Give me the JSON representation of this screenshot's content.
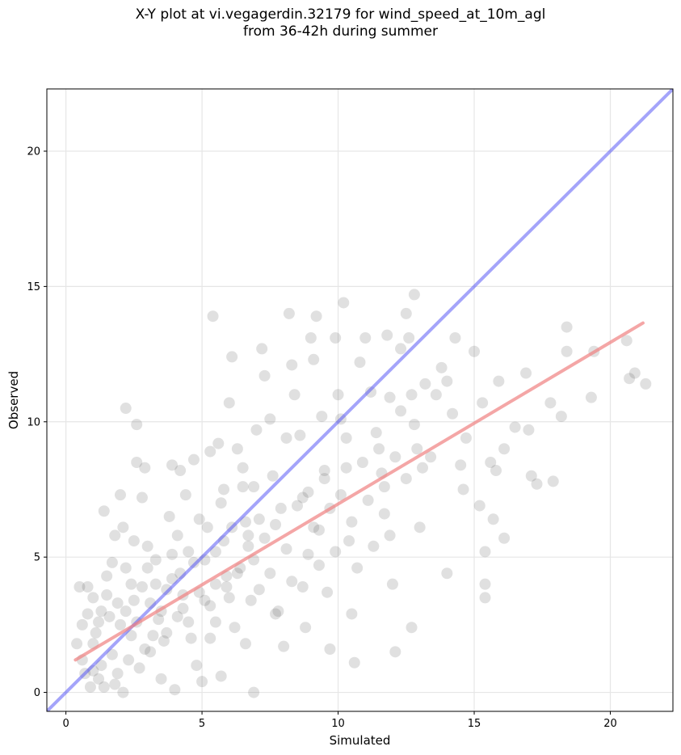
{
  "chart_data": {
    "type": "scatter",
    "title_lines": [
      "X-Y plot at vi.vegagerdin.32179 for wind_speed_at_10m_agl",
      "from 36-42h during summer"
    ],
    "xlabel": "Simulated",
    "ylabel": "Observed",
    "xlim": [
      -0.7,
      22.3
    ],
    "ylim": [
      -0.7,
      22.3
    ],
    "xticks": [
      0,
      5,
      10,
      15,
      20
    ],
    "yticks": [
      0,
      5,
      10,
      15,
      20
    ],
    "grid": true,
    "point_color": "#555555",
    "point_opacity": 0.18,
    "identity_line": {
      "color": "#4a4af5",
      "from": [
        -0.7,
        -0.7
      ],
      "to": [
        22.3,
        22.3
      ]
    },
    "regression_line": {
      "color": "#f08080",
      "from": [
        0.35,
        1.2
      ],
      "to": [
        21.2,
        13.65
      ]
    },
    "points": [
      [
        0.5,
        3.9
      ],
      [
        0.8,
        3.9
      ],
      [
        1.0,
        3.5
      ],
      [
        0.6,
        2.5
      ],
      [
        0.7,
        0.7
      ],
      [
        0.9,
        0.2
      ],
      [
        1.2,
        0.5
      ],
      [
        1.0,
        1.8
      ],
      [
        1.3,
        3.0
      ],
      [
        1.5,
        4.3
      ],
      [
        1.4,
        6.7
      ],
      [
        1.8,
        5.8
      ],
      [
        2.0,
        7.3
      ],
      [
        2.1,
        6.1
      ],
      [
        2.2,
        10.5
      ],
      [
        2.6,
        9.9
      ],
      [
        2.6,
        8.5
      ],
      [
        2.9,
        8.3
      ],
      [
        2.8,
        7.2
      ],
      [
        2.5,
        5.6
      ],
      [
        1.8,
        0.3
      ],
      [
        2.1,
        0.0
      ],
      [
        2.3,
        1.2
      ],
      [
        2.0,
        2.5
      ],
      [
        2.5,
        3.4
      ],
      [
        1.7,
        4.8
      ],
      [
        3.0,
        4.6
      ],
      [
        3.2,
        2.1
      ],
      [
        3.5,
        0.5
      ],
      [
        3.1,
        1.5
      ],
      [
        3.7,
        3.8
      ],
      [
        4.0,
        0.1
      ],
      [
        3.8,
        6.5
      ],
      [
        3.9,
        8.4
      ],
      [
        4.2,
        8.2
      ],
      [
        4.4,
        7.3
      ],
      [
        4.7,
        8.6
      ],
      [
        4.5,
        5.2
      ],
      [
        4.1,
        2.8
      ],
      [
        4.8,
        1.0
      ],
      [
        5.0,
        0.4
      ],
      [
        5.2,
        6.1
      ],
      [
        5.3,
        8.9
      ],
      [
        5.4,
        13.9
      ],
      [
        5.6,
        9.2
      ],
      [
        5.8,
        7.5
      ],
      [
        5.9,
        4.3
      ],
      [
        5.5,
        2.6
      ],
      [
        5.7,
        0.6
      ],
      [
        6.0,
        10.7
      ],
      [
        6.1,
        12.4
      ],
      [
        6.3,
        9.0
      ],
      [
        6.5,
        7.6
      ],
      [
        6.7,
        5.4
      ],
      [
        6.9,
        0.0
      ],
      [
        6.6,
        1.8
      ],
      [
        6.8,
        3.4
      ],
      [
        7.0,
        9.7
      ],
      [
        7.2,
        12.7
      ],
      [
        7.3,
        11.7
      ],
      [
        7.5,
        10.1
      ],
      [
        7.6,
        8.0
      ],
      [
        7.7,
        6.2
      ],
      [
        7.8,
        3.0
      ],
      [
        8.0,
        1.7
      ],
      [
        8.1,
        9.4
      ],
      [
        8.2,
        14.0
      ],
      [
        8.3,
        12.1
      ],
      [
        8.4,
        11.0
      ],
      [
        8.6,
        9.5
      ],
      [
        8.7,
        7.2
      ],
      [
        8.9,
        5.1
      ],
      [
        8.8,
        2.4
      ],
      [
        9.0,
        13.1
      ],
      [
        9.1,
        12.3
      ],
      [
        9.2,
        13.9
      ],
      [
        9.4,
        10.2
      ],
      [
        9.5,
        8.2
      ],
      [
        9.3,
        6.0
      ],
      [
        9.6,
        3.7
      ],
      [
        9.7,
        1.6
      ],
      [
        9.9,
        13.1
      ],
      [
        10.0,
        11.0
      ],
      [
        10.1,
        10.1
      ],
      [
        10.2,
        14.4
      ],
      [
        10.3,
        8.3
      ],
      [
        10.4,
        5.6
      ],
      [
        10.5,
        2.9
      ],
      [
        10.6,
        1.1
      ],
      [
        10.8,
        12.2
      ],
      [
        11.0,
        13.1
      ],
      [
        11.2,
        11.1
      ],
      [
        11.4,
        9.6
      ],
      [
        11.6,
        8.1
      ],
      [
        11.7,
        6.6
      ],
      [
        11.8,
        13.2
      ],
      [
        11.9,
        10.9
      ],
      [
        12.0,
        4.0
      ],
      [
        12.1,
        1.5
      ],
      [
        12.3,
        12.7
      ],
      [
        12.5,
        14.0
      ],
      [
        12.6,
        13.1
      ],
      [
        12.7,
        11.0
      ],
      [
        12.8,
        14.7
      ],
      [
        12.9,
        9.0
      ],
      [
        13.0,
        6.1
      ],
      [
        12.7,
        2.4
      ],
      [
        13.2,
        11.4
      ],
      [
        13.4,
        8.7
      ],
      [
        13.6,
        11.0
      ],
      [
        13.8,
        12.0
      ],
      [
        14.0,
        11.5
      ],
      [
        14.2,
        10.3
      ],
      [
        14.0,
        4.4
      ],
      [
        14.3,
        13.1
      ],
      [
        14.5,
        8.4
      ],
      [
        14.6,
        7.5
      ],
      [
        14.7,
        9.4
      ],
      [
        15.0,
        12.6
      ],
      [
        15.2,
        6.9
      ],
      [
        15.3,
        10.7
      ],
      [
        15.4,
        4.0
      ],
      [
        15.4,
        3.5
      ],
      [
        15.4,
        5.2
      ],
      [
        15.6,
        8.5
      ],
      [
        15.7,
        6.4
      ],
      [
        15.9,
        11.5
      ],
      [
        15.8,
        8.2
      ],
      [
        16.1,
        5.7
      ],
      [
        16.1,
        9.0
      ],
      [
        16.5,
        9.8
      ],
      [
        16.9,
        11.8
      ],
      [
        17.0,
        9.7
      ],
      [
        17.1,
        8.0
      ],
      [
        17.3,
        7.7
      ],
      [
        17.8,
        10.7
      ],
      [
        17.9,
        7.8
      ],
      [
        18.2,
        10.2
      ],
      [
        18.4,
        13.5
      ],
      [
        18.4,
        12.6
      ],
      [
        19.3,
        10.9
      ],
      [
        19.4,
        12.6
      ],
      [
        20.6,
        13.0
      ],
      [
        20.7,
        11.6
      ],
      [
        20.9,
        11.8
      ],
      [
        21.3,
        11.4
      ],
      [
        0.4,
        1.8
      ],
      [
        0.6,
        1.2
      ],
      [
        0.8,
        2.9
      ],
      [
        1.1,
        2.2
      ],
      [
        1.3,
        1.0
      ],
      [
        1.4,
        0.2
      ],
      [
        1.6,
        2.8
      ],
      [
        1.9,
        3.3
      ],
      [
        2.2,
        4.6
      ],
      [
        2.4,
        2.1
      ],
      [
        2.7,
        0.9
      ],
      [
        2.8,
        3.9
      ],
      [
        3.0,
        5.4
      ],
      [
        3.3,
        4.0
      ],
      [
        3.4,
        2.7
      ],
      [
        3.6,
        1.9
      ],
      [
        3.9,
        5.1
      ],
      [
        4.2,
        4.4
      ],
      [
        4.3,
        3.1
      ],
      [
        4.6,
        2.0
      ],
      [
        4.9,
        3.7
      ],
      [
        5.1,
        4.9
      ],
      [
        5.3,
        3.2
      ],
      [
        5.5,
        4.0
      ],
      [
        5.8,
        5.6
      ],
      [
        6.0,
        3.5
      ],
      [
        6.2,
        2.4
      ],
      [
        6.4,
        4.6
      ],
      [
        6.6,
        6.3
      ],
      [
        6.9,
        4.9
      ],
      [
        7.1,
        3.8
      ],
      [
        7.3,
        5.7
      ],
      [
        7.5,
        4.4
      ],
      [
        7.7,
        2.9
      ],
      [
        7.9,
        6.8
      ],
      [
        8.1,
        5.3
      ],
      [
        8.3,
        4.1
      ],
      [
        8.5,
        6.9
      ],
      [
        8.7,
        3.9
      ],
      [
        8.9,
        7.4
      ],
      [
        9.1,
        6.1
      ],
      [
        9.3,
        4.7
      ],
      [
        9.5,
        7.9
      ],
      [
        9.7,
        6.8
      ],
      [
        9.9,
        5.2
      ],
      [
        10.1,
        7.3
      ],
      [
        10.3,
        9.4
      ],
      [
        10.5,
        6.3
      ],
      [
        10.7,
        4.6
      ],
      [
        10.9,
        8.5
      ],
      [
        11.1,
        7.1
      ],
      [
        11.3,
        5.4
      ],
      [
        11.5,
        9.0
      ],
      [
        11.7,
        7.6
      ],
      [
        11.9,
        5.8
      ],
      [
        12.1,
        8.7
      ],
      [
        12.3,
        10.4
      ],
      [
        12.5,
        7.9
      ],
      [
        12.8,
        9.9
      ],
      [
        13.1,
        8.3
      ],
      [
        1.0,
        0.8
      ],
      [
        1.2,
        2.6
      ],
      [
        1.5,
        3.6
      ],
      [
        1.7,
        1.4
      ],
      [
        1.9,
        0.7
      ],
      [
        2.2,
        3.0
      ],
      [
        2.4,
        4.0
      ],
      [
        2.6,
        2.6
      ],
      [
        2.9,
        1.6
      ],
      [
        3.1,
        3.3
      ],
      [
        3.3,
        4.9
      ],
      [
        3.5,
        3.0
      ],
      [
        3.7,
        2.2
      ],
      [
        3.9,
        4.2
      ],
      [
        4.1,
        5.8
      ],
      [
        4.3,
        3.6
      ],
      [
        4.5,
        2.6
      ],
      [
        4.7,
        4.8
      ],
      [
        4.9,
        6.4
      ],
      [
        5.1,
        3.4
      ],
      [
        5.3,
        2.0
      ],
      [
        5.5,
        5.2
      ],
      [
        5.7,
        7.0
      ],
      [
        5.9,
        3.9
      ],
      [
        6.1,
        6.1
      ],
      [
        6.3,
        4.4
      ],
      [
        6.5,
        8.3
      ],
      [
        6.7,
        5.8
      ],
      [
        6.9,
        7.6
      ],
      [
        7.1,
        6.4
      ]
    ]
  }
}
